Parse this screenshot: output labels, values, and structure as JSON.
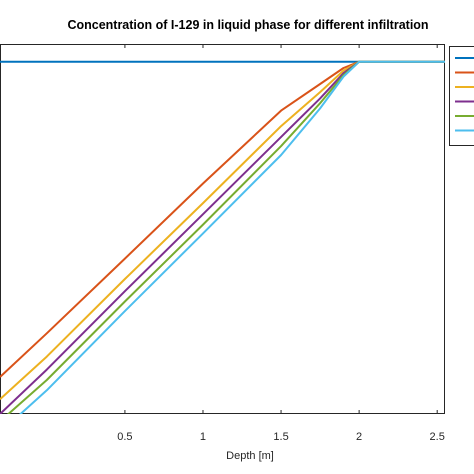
{
  "chart_data": {
    "type": "line",
    "title": "Concentration of I-129 in liquid phase for different infiltration",
    "xlabel": "Depth [m]",
    "ylabel": "",
    "xlim": [
      -0.3,
      2.55
    ],
    "ylim": [
      0,
      1.0
    ],
    "x_ticks": [
      0.5,
      1,
      1.5,
      2,
      2.5
    ],
    "x_tick_labels": [
      "0.5",
      "1",
      "1.5",
      "2",
      "2.5"
    ],
    "grid": false,
    "legend": "top-right (legend labels cut off at image edge)",
    "series": [
      {
        "color": "#0072BD",
        "x": [
          -0.3,
          2.55
        ],
        "y": [
          0.952,
          0.952
        ]
      },
      {
        "color": "#D95319",
        "x": [
          -0.3,
          0,
          0.5,
          1,
          1.5,
          1.75,
          1.9,
          2.0,
          2.55
        ],
        "y": [
          0.1,
          0.218,
          0.42,
          0.623,
          0.82,
          0.892,
          0.935,
          0.952,
          0.952
        ]
      },
      {
        "color": "#EDB120",
        "x": [
          -0.3,
          0,
          0.5,
          1,
          1.5,
          1.75,
          1.9,
          2.0,
          2.55
        ],
        "y": [
          0.04,
          0.155,
          0.365,
          0.57,
          0.778,
          0.87,
          0.928,
          0.952,
          0.952
        ]
      },
      {
        "color": "#7E2F8E",
        "x": [
          -0.3,
          0,
          0.5,
          1,
          1.5,
          1.75,
          1.9,
          2.0,
          2.55
        ],
        "y": [
          0.0,
          0.12,
          0.332,
          0.54,
          0.749,
          0.853,
          0.921,
          0.952,
          0.952
        ]
      },
      {
        "color": "#77AC30",
        "x": [
          -0.3,
          0,
          0.5,
          1,
          1.5,
          1.75,
          1.9,
          2.0,
          2.55
        ],
        "y": [
          -0.02,
          0.092,
          0.304,
          0.512,
          0.724,
          0.84,
          0.916,
          0.952,
          0.952
        ]
      },
      {
        "color": "#4DBEEE",
        "x": [
          -0.3,
          0,
          0.5,
          1,
          1.5,
          1.75,
          1.9,
          2.0,
          2.55
        ],
        "y": [
          -0.05,
          0.064,
          0.278,
          0.488,
          0.7,
          0.826,
          0.912,
          0.952,
          0.952
        ]
      }
    ]
  }
}
